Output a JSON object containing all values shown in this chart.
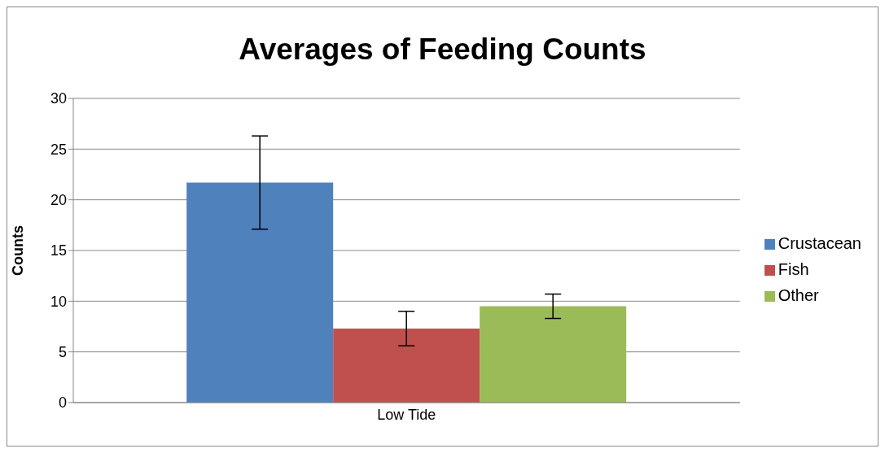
{
  "chart_data": {
    "type": "bar",
    "title": "Averages of Feeding Counts",
    "ylabel": "Counts",
    "categories": [
      "Low Tide"
    ],
    "series": [
      {
        "name": "Crustacean",
        "color": "#4f81bd",
        "values": [
          21.7
        ],
        "errors": [
          4.6
        ]
      },
      {
        "name": "Fish",
        "color": "#c0504d",
        "values": [
          7.3
        ],
        "errors": [
          1.7
        ]
      },
      {
        "name": "Other",
        "color": "#9bbb59",
        "values": [
          9.5
        ],
        "errors": [
          1.2
        ]
      }
    ],
    "ylim": [
      0,
      30
    ],
    "yticks": [
      0,
      5,
      10,
      15,
      20,
      25,
      30
    ],
    "grid": "y",
    "legend": "right"
  }
}
